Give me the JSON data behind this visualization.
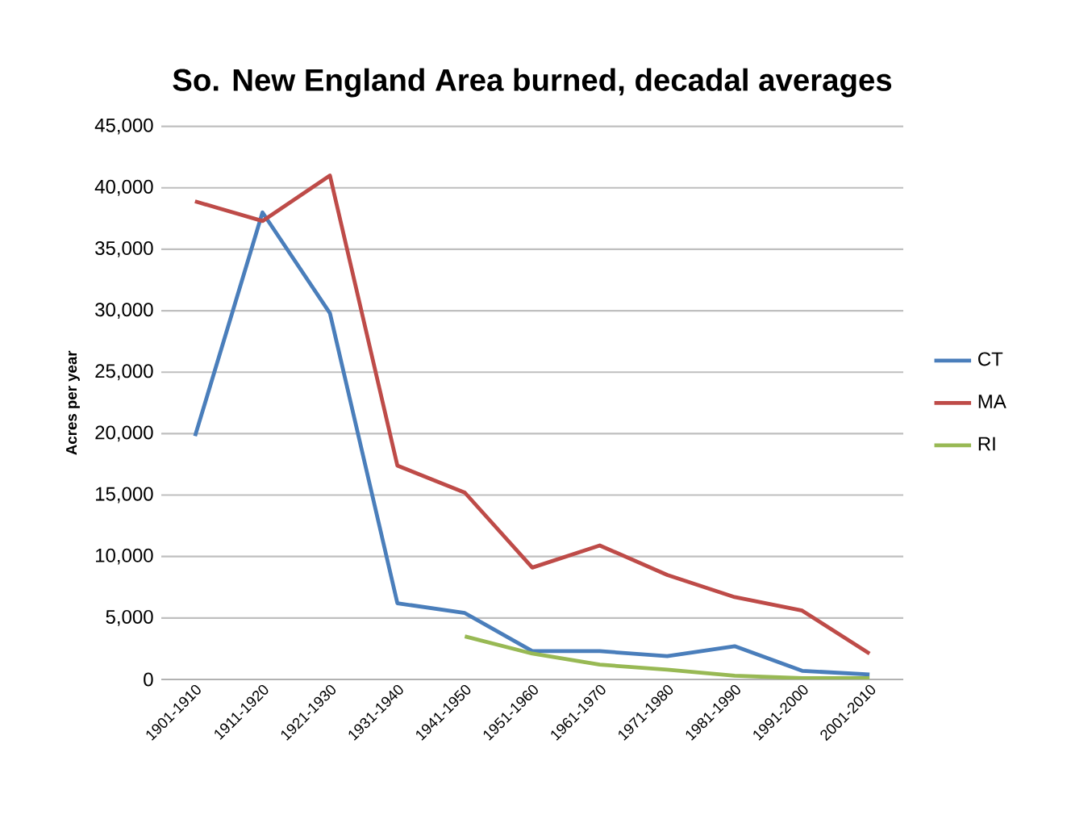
{
  "chart_data": {
    "type": "line",
    "title": "So. New England Area burned, decadal averages",
    "ylabel": "Acres per year",
    "categories": [
      "1901-1910",
      "1911-1920",
      "1921-1930",
      "1931-1940",
      "1941-1950",
      "1951-1960",
      "1961-1970",
      "1971-1980",
      "1981-1990",
      "1991-2000",
      "2001-2010"
    ],
    "series": [
      {
        "name": "CT",
        "color": "#4a7ebb",
        "values": [
          19800,
          38000,
          29800,
          6200,
          5400,
          2300,
          2300,
          1900,
          2700,
          700,
          400
        ]
      },
      {
        "name": "MA",
        "color": "#be4b48",
        "values": [
          38900,
          37300,
          41000,
          17400,
          15200,
          9100,
          10900,
          8500,
          6700,
          5600,
          2100
        ]
      },
      {
        "name": "RI",
        "color": "#98b954",
        "values": [
          null,
          null,
          null,
          null,
          3500,
          2100,
          1200,
          800,
          300,
          100,
          100
        ]
      }
    ],
    "ylim": [
      0,
      45000
    ],
    "yticks": [
      {
        "value": 0,
        "label": "0"
      },
      {
        "value": 5000,
        "label": "5,000"
      },
      {
        "value": 10000,
        "label": "10,000"
      },
      {
        "value": 15000,
        "label": "15,000"
      },
      {
        "value": 20000,
        "label": "20,000"
      },
      {
        "value": 25000,
        "label": "25,000"
      },
      {
        "value": 30000,
        "label": "30,000"
      },
      {
        "value": 35000,
        "label": "35,000"
      },
      {
        "value": 40000,
        "label": "40,000"
      },
      {
        "value": 45000,
        "label": "45,000"
      }
    ],
    "grid": "y",
    "legend": "right",
    "marker": "none",
    "line_style": "solid"
  }
}
